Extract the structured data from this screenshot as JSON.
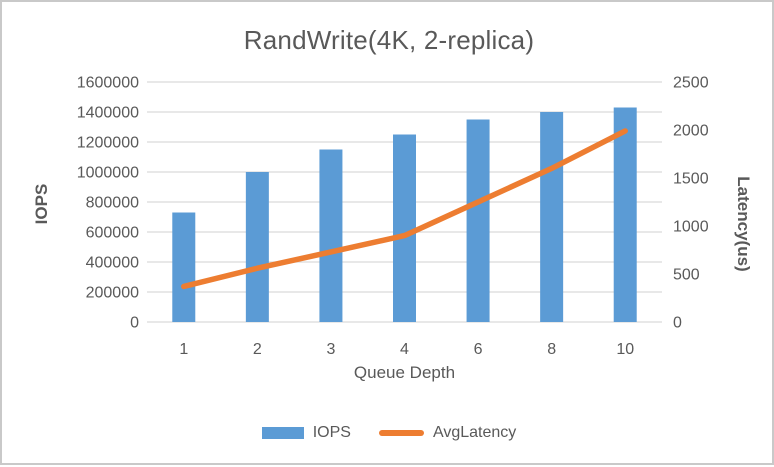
{
  "window": {
    "border_color": "#c9c9c9",
    "background_color": "#ffffff"
  },
  "chart_data": {
    "type": "combo-bar-line",
    "title": "RandWrite(4K, 2-replica)",
    "text_color": "#595959",
    "grid_on": true,
    "gridline_color": "#d9d9d9",
    "x_axis": {
      "title": "Queue Depth",
      "categories": [
        "1",
        "2",
        "3",
        "4",
        "6",
        "8",
        "10"
      ]
    },
    "left_axis": {
      "title": "IOPS",
      "min": 0,
      "max": 1600000,
      "step": 200000,
      "tick_labels": [
        "0",
        "200000",
        "400000",
        "600000",
        "800000",
        "1000000",
        "1200000",
        "1400000",
        "1600000"
      ]
    },
    "right_axis": {
      "title": "Latency(us)",
      "min": 0,
      "max": 2500,
      "step": 500,
      "tick_labels": [
        "0",
        "500",
        "1000",
        "1500",
        "2000",
        "2500"
      ]
    },
    "series": [
      {
        "name": "IOPS",
        "type": "bar",
        "axis": "left",
        "color": "#5b9bd5",
        "values": [
          730000,
          1000000,
          1150000,
          1250000,
          1350000,
          1400000,
          1430000
        ]
      },
      {
        "name": "AvgLatency",
        "type": "line",
        "axis": "right",
        "color": "#ed7d31",
        "values": [
          370,
          560,
          730,
          900,
          1250,
          1600,
          1990
        ]
      }
    ],
    "legend": {
      "position": "bottom"
    }
  }
}
